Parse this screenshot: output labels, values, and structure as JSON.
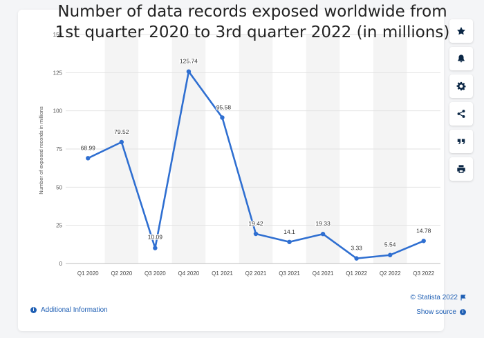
{
  "chart_data": {
    "type": "line",
    "title": "Number of data records exposed worldwide from 1st quarter 2020 to 3rd quarter 2022 (in millions)",
    "xlabel": "",
    "ylabel": "Number of exposed records in millions",
    "categories": [
      "Q1 2020",
      "Q2 2020",
      "Q3 2020",
      "Q4 2020",
      "Q1 2021",
      "Q2 2021",
      "Q3 2021",
      "Q4 2021",
      "Q1 2022",
      "Q2 2022",
      "Q3 2022"
    ],
    "values": [
      68.99,
      79.52,
      10.09,
      125.74,
      95.58,
      19.42,
      14.1,
      19.33,
      3.33,
      5.54,
      14.78
    ],
    "value_labels": [
      "68.99",
      "79.52",
      "10.09",
      "125.74",
      "95.58",
      "19.42",
      "14.1",
      "19.33",
      "3.33",
      "5.54",
      "14.78"
    ],
    "ylim": [
      0,
      150
    ],
    "yticks": [
      0,
      25,
      50,
      75,
      100,
      125,
      150
    ],
    "grid": true,
    "alternating_column_shading": true,
    "colors": {
      "line": "#2f6fd1",
      "marker": "#2f6fd1",
      "shade": "#f4f4f4",
      "grid": "#e2e2e2"
    }
  },
  "title_lines": [
    "Number of data records exposed worldwide from",
    "1st quarter 2020 to 3rd quarter 2022 (in millions)"
  ],
  "toolbar": [
    {
      "name": "star-icon"
    },
    {
      "name": "bell-icon"
    },
    {
      "name": "gear-icon"
    },
    {
      "name": "share-icon"
    },
    {
      "name": "quote-icon"
    },
    {
      "name": "print-icon"
    }
  ],
  "footer": {
    "additional_info": "Additional Information",
    "copyright": "© Statista 2022",
    "show_source": "Show source"
  },
  "colors": {
    "link": "#1f5fb4",
    "icon": "#0b2745"
  }
}
